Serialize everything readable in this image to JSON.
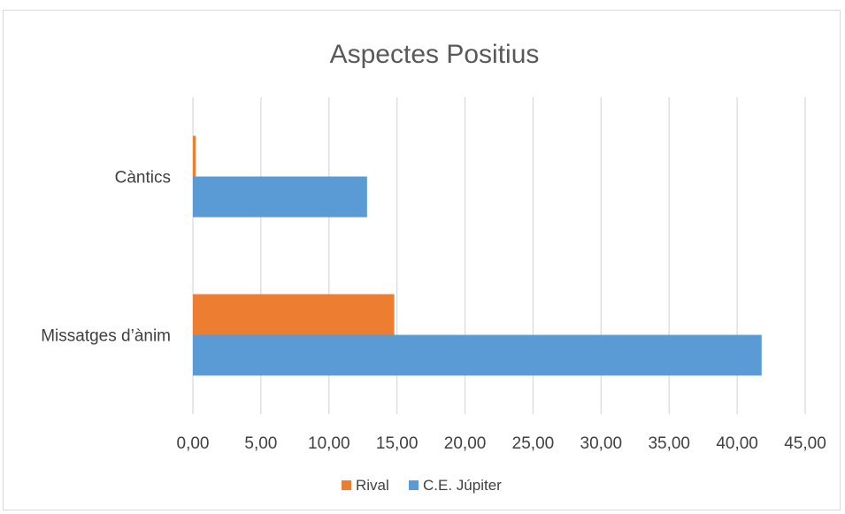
{
  "chart_data": {
    "type": "bar",
    "orientation": "horizontal",
    "title": "Aspectes Positius",
    "categories": [
      "Càntics",
      "Missatges d’ànim"
    ],
    "series": [
      {
        "name": "Rival",
        "color": "#ed7d31",
        "values": [
          0.2,
          14.8
        ]
      },
      {
        "name": "C.E. Júpiter",
        "color": "#5b9bd5",
        "values": [
          12.8,
          41.8
        ]
      }
    ],
    "xlim": [
      0,
      45
    ],
    "ticks": [
      "0,00",
      "5,00",
      "10,00",
      "15,00",
      "20,00",
      "25,00",
      "30,00",
      "35,00",
      "40,00",
      "45,00"
    ],
    "xlabel": "",
    "ylabel": "",
    "grid": true,
    "legend_position": "bottom"
  }
}
